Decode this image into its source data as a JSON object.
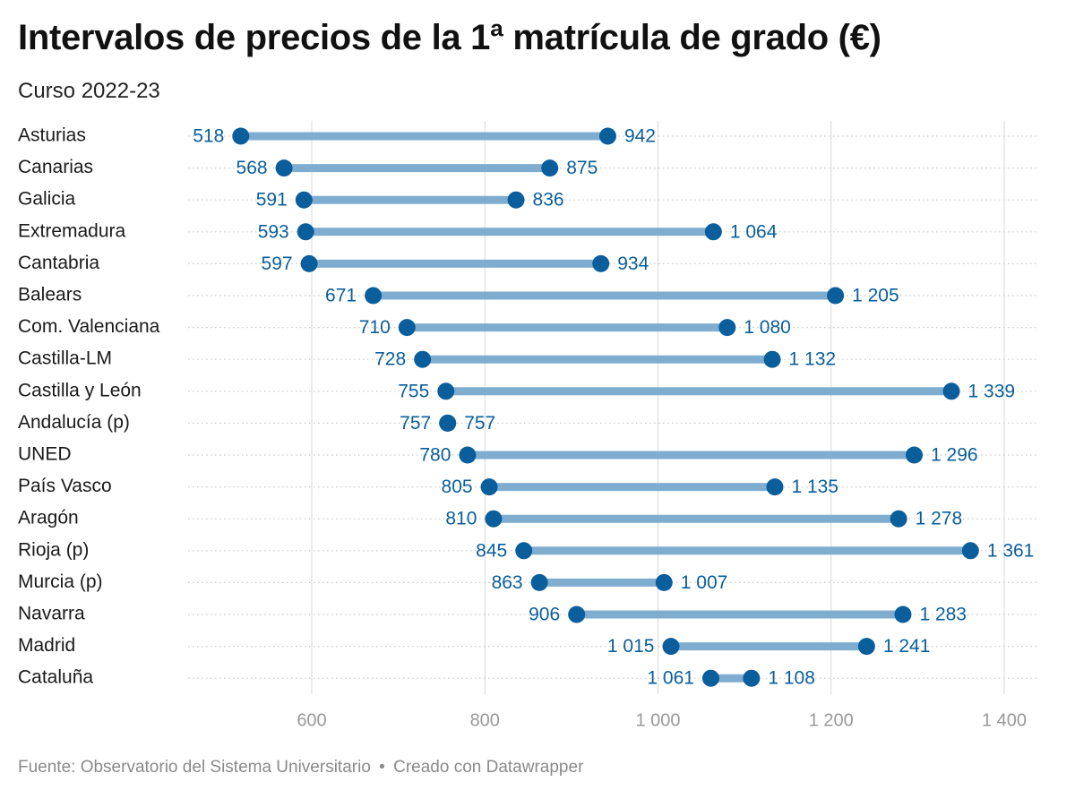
{
  "title": "Intervalos de precios de la 1ª matrícula de grado (€)",
  "subtitle": "Curso 2022-23",
  "footer": {
    "source": "Fuente: Observatorio del Sistema Universitario",
    "separator": "•",
    "credit": "Creado con Datawrapper"
  },
  "colors": {
    "dot": "#0a5e9c",
    "bar": "#7fadd0",
    "label": "#0a5e9c",
    "axis_text": "#999999",
    "grid": "#d8d8d8"
  },
  "chart_data": {
    "type": "dumbbell",
    "xlim": [
      450,
      1400
    ],
    "x_ticks": [
      600,
      800,
      1000,
      1200,
      1400
    ],
    "x_tick_labels": [
      "600",
      "800",
      "1 000",
      "1 200",
      "1 400"
    ],
    "grid": true,
    "rows": [
      {
        "label": "Asturias",
        "min": 518,
        "max": 942,
        "min_label": "518",
        "max_label": "942"
      },
      {
        "label": "Canarias",
        "min": 568,
        "max": 875,
        "min_label": "568",
        "max_label": "875"
      },
      {
        "label": "Galicia",
        "min": 591,
        "max": 836,
        "min_label": "591",
        "max_label": "836"
      },
      {
        "label": "Extremadura",
        "min": 593,
        "max": 1064,
        "min_label": "593",
        "max_label": "1 064"
      },
      {
        "label": "Cantabria",
        "min": 597,
        "max": 934,
        "min_label": "597",
        "max_label": "934"
      },
      {
        "label": "Balears",
        "min": 671,
        "max": 1205,
        "min_label": "671",
        "max_label": "1 205"
      },
      {
        "label": "Com. Valenciana",
        "min": 710,
        "max": 1080,
        "min_label": "710",
        "max_label": "1 080"
      },
      {
        "label": "Castilla-LM",
        "min": 728,
        "max": 1132,
        "min_label": "728",
        "max_label": "1 132"
      },
      {
        "label": "Castilla y León",
        "min": 755,
        "max": 1339,
        "min_label": "755",
        "max_label": "1 339"
      },
      {
        "label": "Andalucía (p)",
        "min": 757,
        "max": 757,
        "min_label": "757",
        "max_label": "757"
      },
      {
        "label": "UNED",
        "min": 780,
        "max": 1296,
        "min_label": "780",
        "max_label": "1 296"
      },
      {
        "label": "País Vasco",
        "min": 805,
        "max": 1135,
        "min_label": "805",
        "max_label": "1 135"
      },
      {
        "label": "Aragón",
        "min": 810,
        "max": 1278,
        "min_label": "810",
        "max_label": "1 278"
      },
      {
        "label": "Rioja (p)",
        "min": 845,
        "max": 1361,
        "min_label": "845",
        "max_label": "1 361"
      },
      {
        "label": "Murcia (p)",
        "min": 863,
        "max": 1007,
        "min_label": "863",
        "max_label": "1 007"
      },
      {
        "label": "Navarra",
        "min": 906,
        "max": 1283,
        "min_label": "906",
        "max_label": "1 283"
      },
      {
        "label": "Madrid",
        "min": 1015,
        "max": 1241,
        "min_label": "1 015",
        "max_label": "1 241"
      },
      {
        "label": "Cataluña",
        "min": 1061,
        "max": 1108,
        "min_label": "1 061",
        "max_label": "1 108"
      }
    ]
  }
}
